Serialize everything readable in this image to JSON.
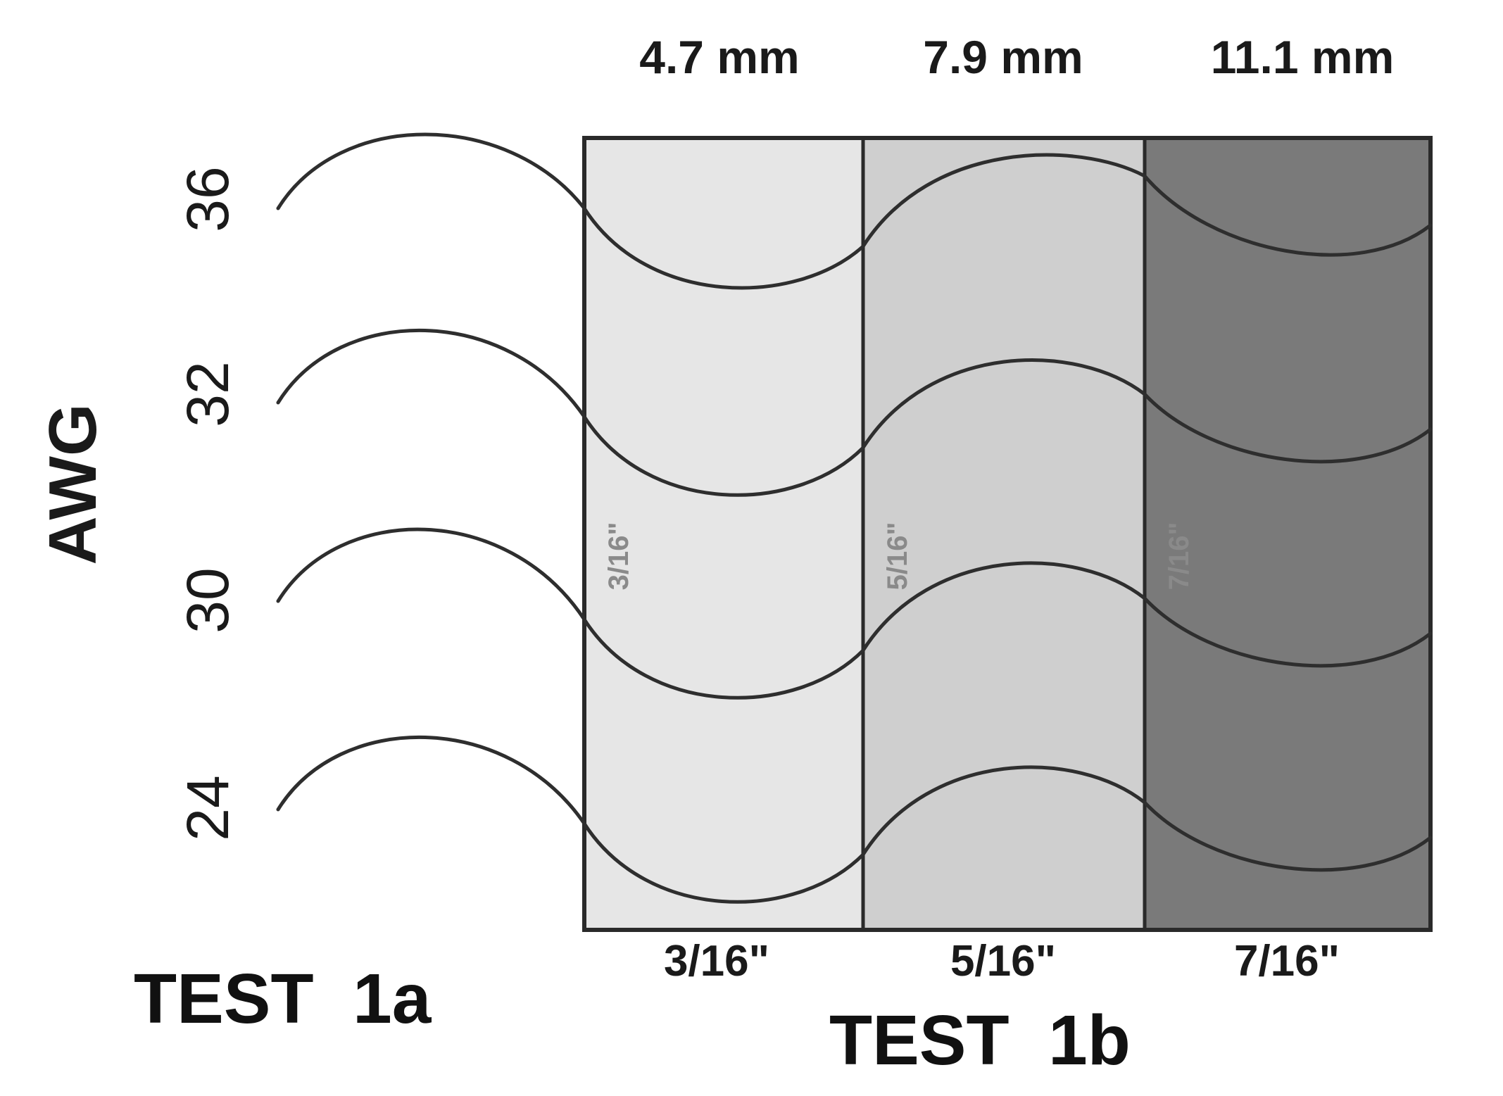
{
  "spacers": [
    {
      "mm": "4.7 mm",
      "inch": "3/16\"",
      "faint": "3/16\"",
      "fill": "#e6e6e6"
    },
    {
      "mm": "7.9 mm",
      "inch": "5/16\"",
      "faint": "5/16\"",
      "fill": "#cfcfcf"
    },
    {
      "mm": "11.1 mm",
      "inch": "7/16\"",
      "faint": "7/16\"",
      "fill": "#7a7a7a"
    }
  ],
  "awg": {
    "title": "AWG",
    "gauges": [
      "36",
      "32",
      "30",
      "24"
    ]
  },
  "tests": {
    "left": "TEST  1a",
    "right": "TEST  1b"
  },
  "colors": {
    "wire": "#2e2e2e",
    "frame": "#2a2a2a"
  }
}
